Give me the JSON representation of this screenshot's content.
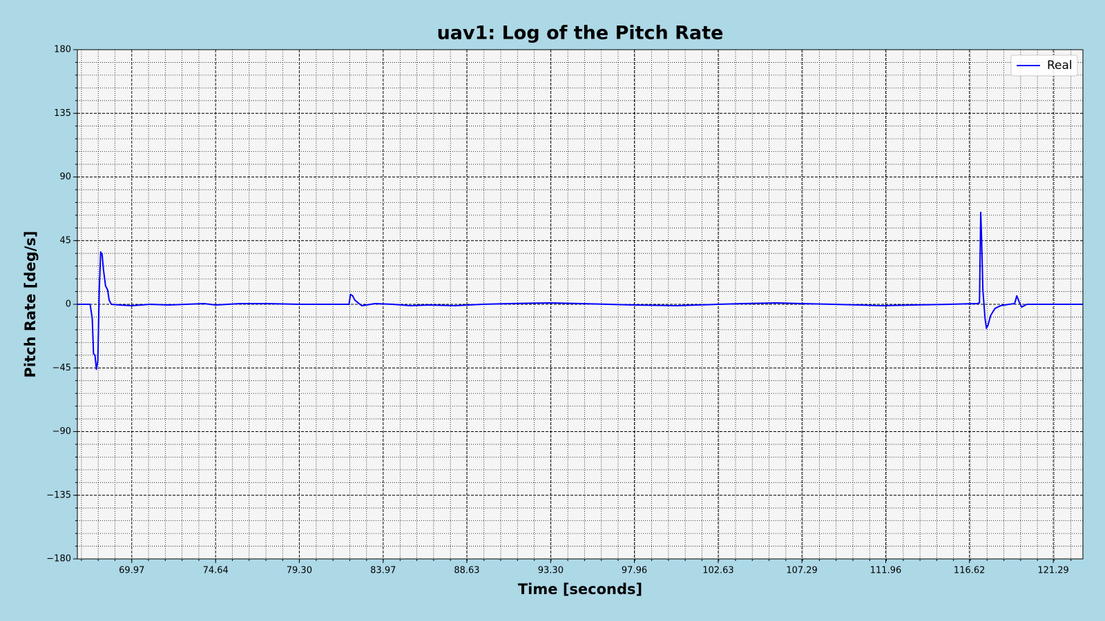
{
  "chart_data": {
    "type": "line",
    "title": "uav1: Log of the Pitch Rate",
    "xlabel": "Time [seconds]",
    "ylabel": "Pitch Rate [deg/s]",
    "x": [
      66.94,
      67.65,
      67.77,
      67.84,
      67.92,
      68.0,
      68.08,
      68.16,
      68.24,
      68.32,
      68.39,
      68.51,
      68.63,
      68.71,
      68.83,
      69.3,
      69.97,
      71.0,
      72.0,
      73.0,
      74.0,
      74.64,
      76.0,
      77.5,
      79.3,
      80.5,
      81.5,
      82.07,
      82.15,
      82.27,
      82.39,
      82.58,
      82.78,
      83.06,
      83.5,
      84.5,
      85.5,
      86.5,
      87.97,
      89.5,
      91.0,
      93.28,
      95.0,
      96.5,
      97.96,
      100.35,
      102.63,
      104.0,
      105.85,
      107.29,
      109.0,
      110.5,
      111.75,
      113.5,
      115.5,
      117.06,
      117.18,
      117.25,
      117.29,
      117.37,
      117.49,
      117.57,
      117.65,
      117.8,
      118.04,
      118.35,
      118.83,
      119.14,
      119.26,
      119.38,
      119.53,
      119.81,
      121.29,
      122.94
    ],
    "series": [
      {
        "name": "Real",
        "color": "#0000ff",
        "values": [
          0,
          0,
          -10,
          -35,
          -36,
          -46,
          -40,
          10,
          37,
          35,
          25,
          13,
          10,
          3,
          0,
          -0.5,
          -1,
          0,
          -0.5,
          0,
          0.5,
          -0.5,
          0.5,
          0.5,
          0,
          0,
          0,
          0,
          7,
          6,
          3,
          1,
          -1,
          -0.5,
          0.5,
          0,
          -1,
          -0.5,
          -1,
          0,
          0.5,
          1,
          0.5,
          0,
          -0.5,
          -1,
          0,
          0.5,
          1,
          0.5,
          0,
          -0.5,
          -1,
          -0.5,
          0,
          0.5,
          1,
          65,
          50,
          10,
          -10,
          -17,
          -15,
          -8,
          -3,
          -1,
          0,
          0.5,
          6,
          2,
          -2,
          0,
          0,
          0
        ]
      }
    ],
    "xlim": [
      66.94,
      122.94
    ],
    "ylim": [
      -180,
      180
    ],
    "xticks": [
      69.97,
      74.64,
      {
        "value": 79.3,
        "label": "79.30"
      },
      83.97,
      88.63,
      {
        "value": 93.3,
        "label": "93.30"
      },
      97.96,
      102.63,
      107.29,
      111.96,
      116.62,
      121.29
    ],
    "yticks": [
      {
        "value": -180,
        "label": "−180"
      },
      {
        "value": -135,
        "label": "−135"
      },
      {
        "value": -90,
        "label": "−90"
      },
      {
        "value": -45,
        "label": "−45"
      },
      0,
      45,
      90,
      135,
      180
    ],
    "grid": true,
    "legend": "upper right"
  }
}
